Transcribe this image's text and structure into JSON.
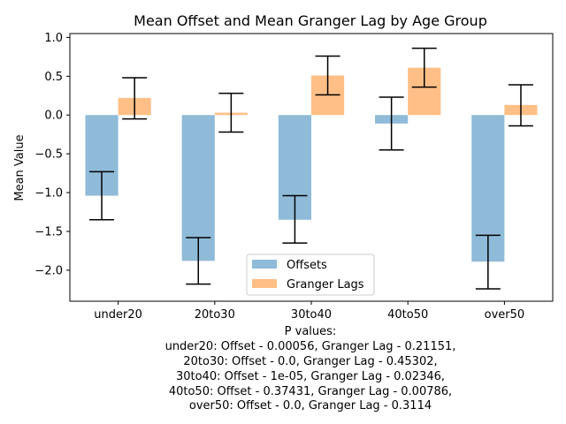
{
  "chart_data": {
    "type": "bar",
    "title": "Mean Offset and Mean Granger Lag by Age Group",
    "xlabel": "",
    "ylabel": "Mean Value",
    "categories": [
      "under20",
      "20to30",
      "30to40",
      "40to50",
      "over50"
    ],
    "ylim": [
      -2.4,
      1.05
    ],
    "yticks": [
      1.0,
      0.5,
      0.0,
      -0.5,
      -1.0,
      -1.5,
      -2.0
    ],
    "ytick_labels": [
      "1.0",
      "0.5",
      "0.0",
      "−0.5",
      "−1.0",
      "−1.5",
      "−2.0"
    ],
    "grid": false,
    "legend_position": "lower center",
    "series": [
      {
        "name": "Offsets",
        "color": "#8fbbd9",
        "values": [
          -1.04,
          -1.88,
          -1.35,
          -0.11,
          -1.89
        ],
        "error_low": [
          -1.35,
          -2.18,
          -1.65,
          -0.45,
          -2.24
        ],
        "error_high": [
          -0.73,
          -1.58,
          -1.04,
          0.23,
          -1.55
        ]
      },
      {
        "name": "Granger Lags",
        "color": "#ffbf86",
        "values": [
          0.22,
          0.03,
          0.51,
          0.61,
          0.13
        ],
        "error_low": [
          -0.05,
          -0.22,
          0.26,
          0.36,
          -0.14
        ],
        "error_high": [
          0.48,
          0.28,
          0.76,
          0.86,
          0.39
        ]
      }
    ],
    "annotation_lines": [
      "P values:",
      "under20: Offset - 0.00056, Granger Lag - 0.21151,",
      "20to30: Offset - 0.0, Granger Lag - 0.45302,",
      "30to40: Offset - 1e-05, Granger Lag - 0.02346,",
      "40to50: Offset - 0.37431, Granger Lag - 0.00786,",
      "over50: Offset - 0.0, Granger Lag - 0.3114"
    ]
  }
}
